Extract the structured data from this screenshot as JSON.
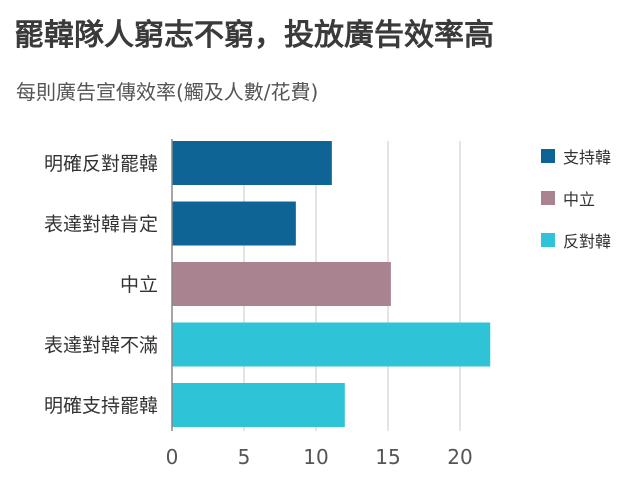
{
  "chart_data": {
    "type": "bar",
    "orientation": "horizontal",
    "title": "罷韓隊人窮志不窮，投放廣告效率高",
    "subtitle": "每則廣告宣傳效率(觸及人數/花費)",
    "categories": [
      "明確反對罷韓",
      "表達對韓肯定",
      "中立",
      "表達對韓不滿",
      "明確支持罷韓"
    ],
    "values": [
      11.1,
      8.6,
      15.2,
      22.1,
      12.0
    ],
    "bar_groups": [
      "支持韓",
      "支持韓",
      "中立",
      "反對韓",
      "反對韓"
    ],
    "legend": [
      {
        "label": "支持韓",
        "color": "#0f6496"
      },
      {
        "label": "中立",
        "color": "#a9838f"
      },
      {
        "label": "反對韓",
        "color": "#2ec3d6"
      }
    ],
    "x_ticks": [
      0,
      5,
      10,
      15,
      20
    ],
    "xlim": [
      0,
      22.5
    ],
    "grid": true,
    "legend_position": "right"
  }
}
